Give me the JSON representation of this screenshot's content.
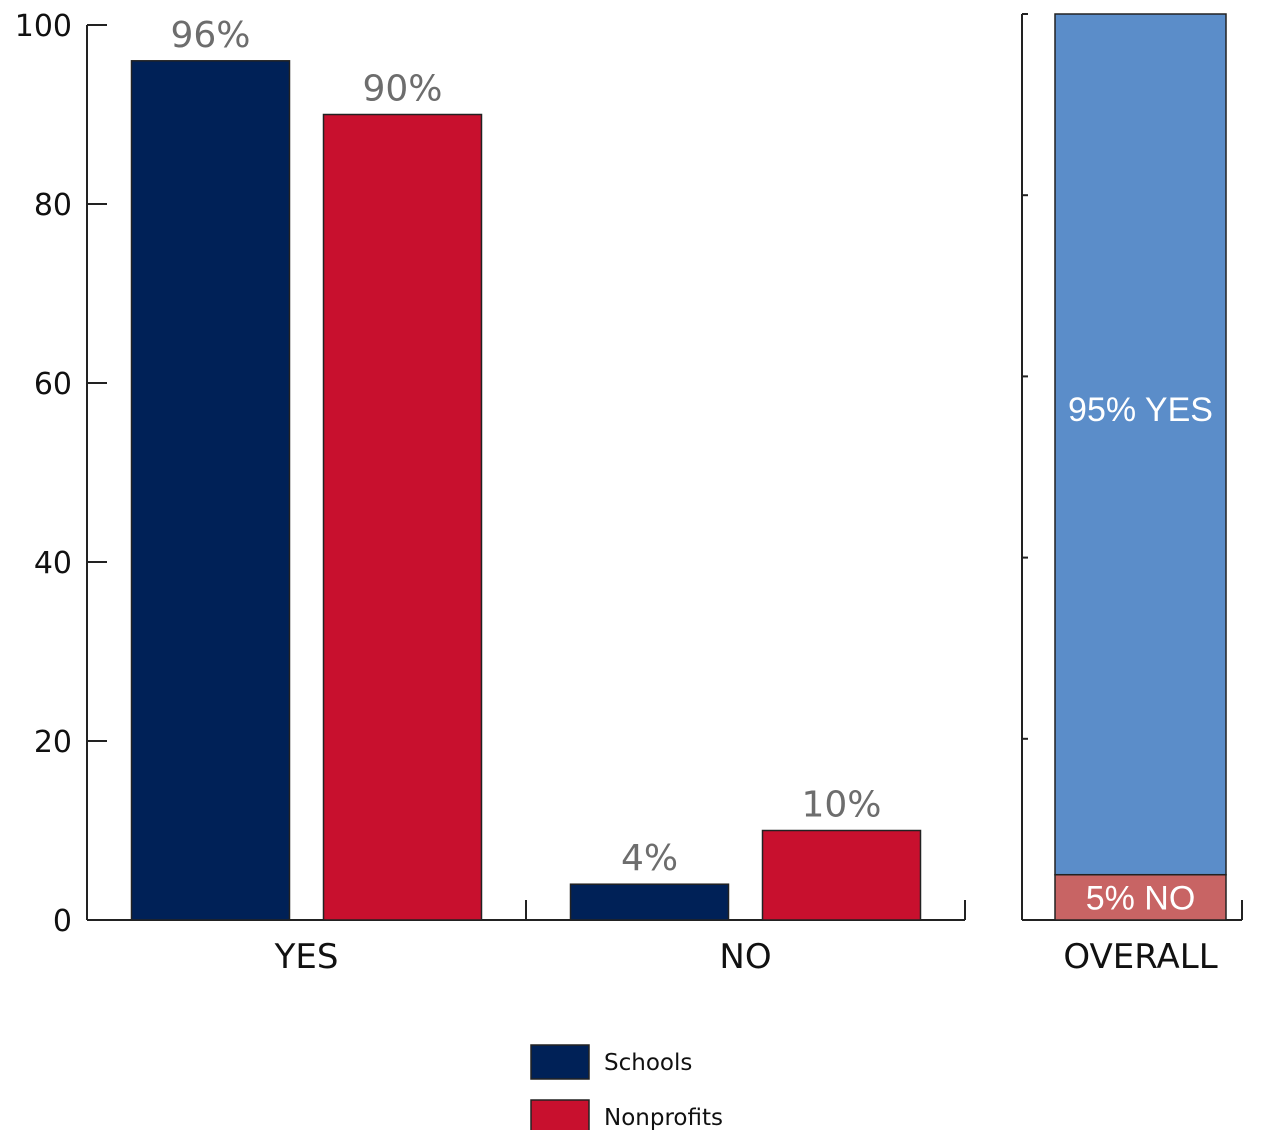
{
  "chart_data": [
    {
      "type": "bar",
      "categories": [
        "YES",
        "NO"
      ],
      "series": [
        {
          "name": "Schools",
          "values": [
            96,
            4
          ],
          "color": "#002157"
        },
        {
          "name": "Nonprofits",
          "values": [
            90,
            10
          ],
          "color": "#c8102e"
        }
      ],
      "data_labels": [
        [
          "96%",
          "4%"
        ],
        [
          "90%",
          "10%"
        ]
      ],
      "yticks": [
        "0",
        "20",
        "40",
        "60",
        "80",
        "100"
      ],
      "ylim": [
        0,
        100
      ],
      "grid": false,
      "legend": "bottom-center"
    },
    {
      "type": "bar",
      "stacked": true,
      "categories": [
        "OVERALL"
      ],
      "segments": [
        {
          "label": "5% NO",
          "value": 5,
          "color": "#c86464"
        },
        {
          "label": "95% YES",
          "value": 95,
          "color": "#5b8dc9"
        }
      ],
      "ylim": [
        0,
        100
      ],
      "grid": false
    }
  ]
}
